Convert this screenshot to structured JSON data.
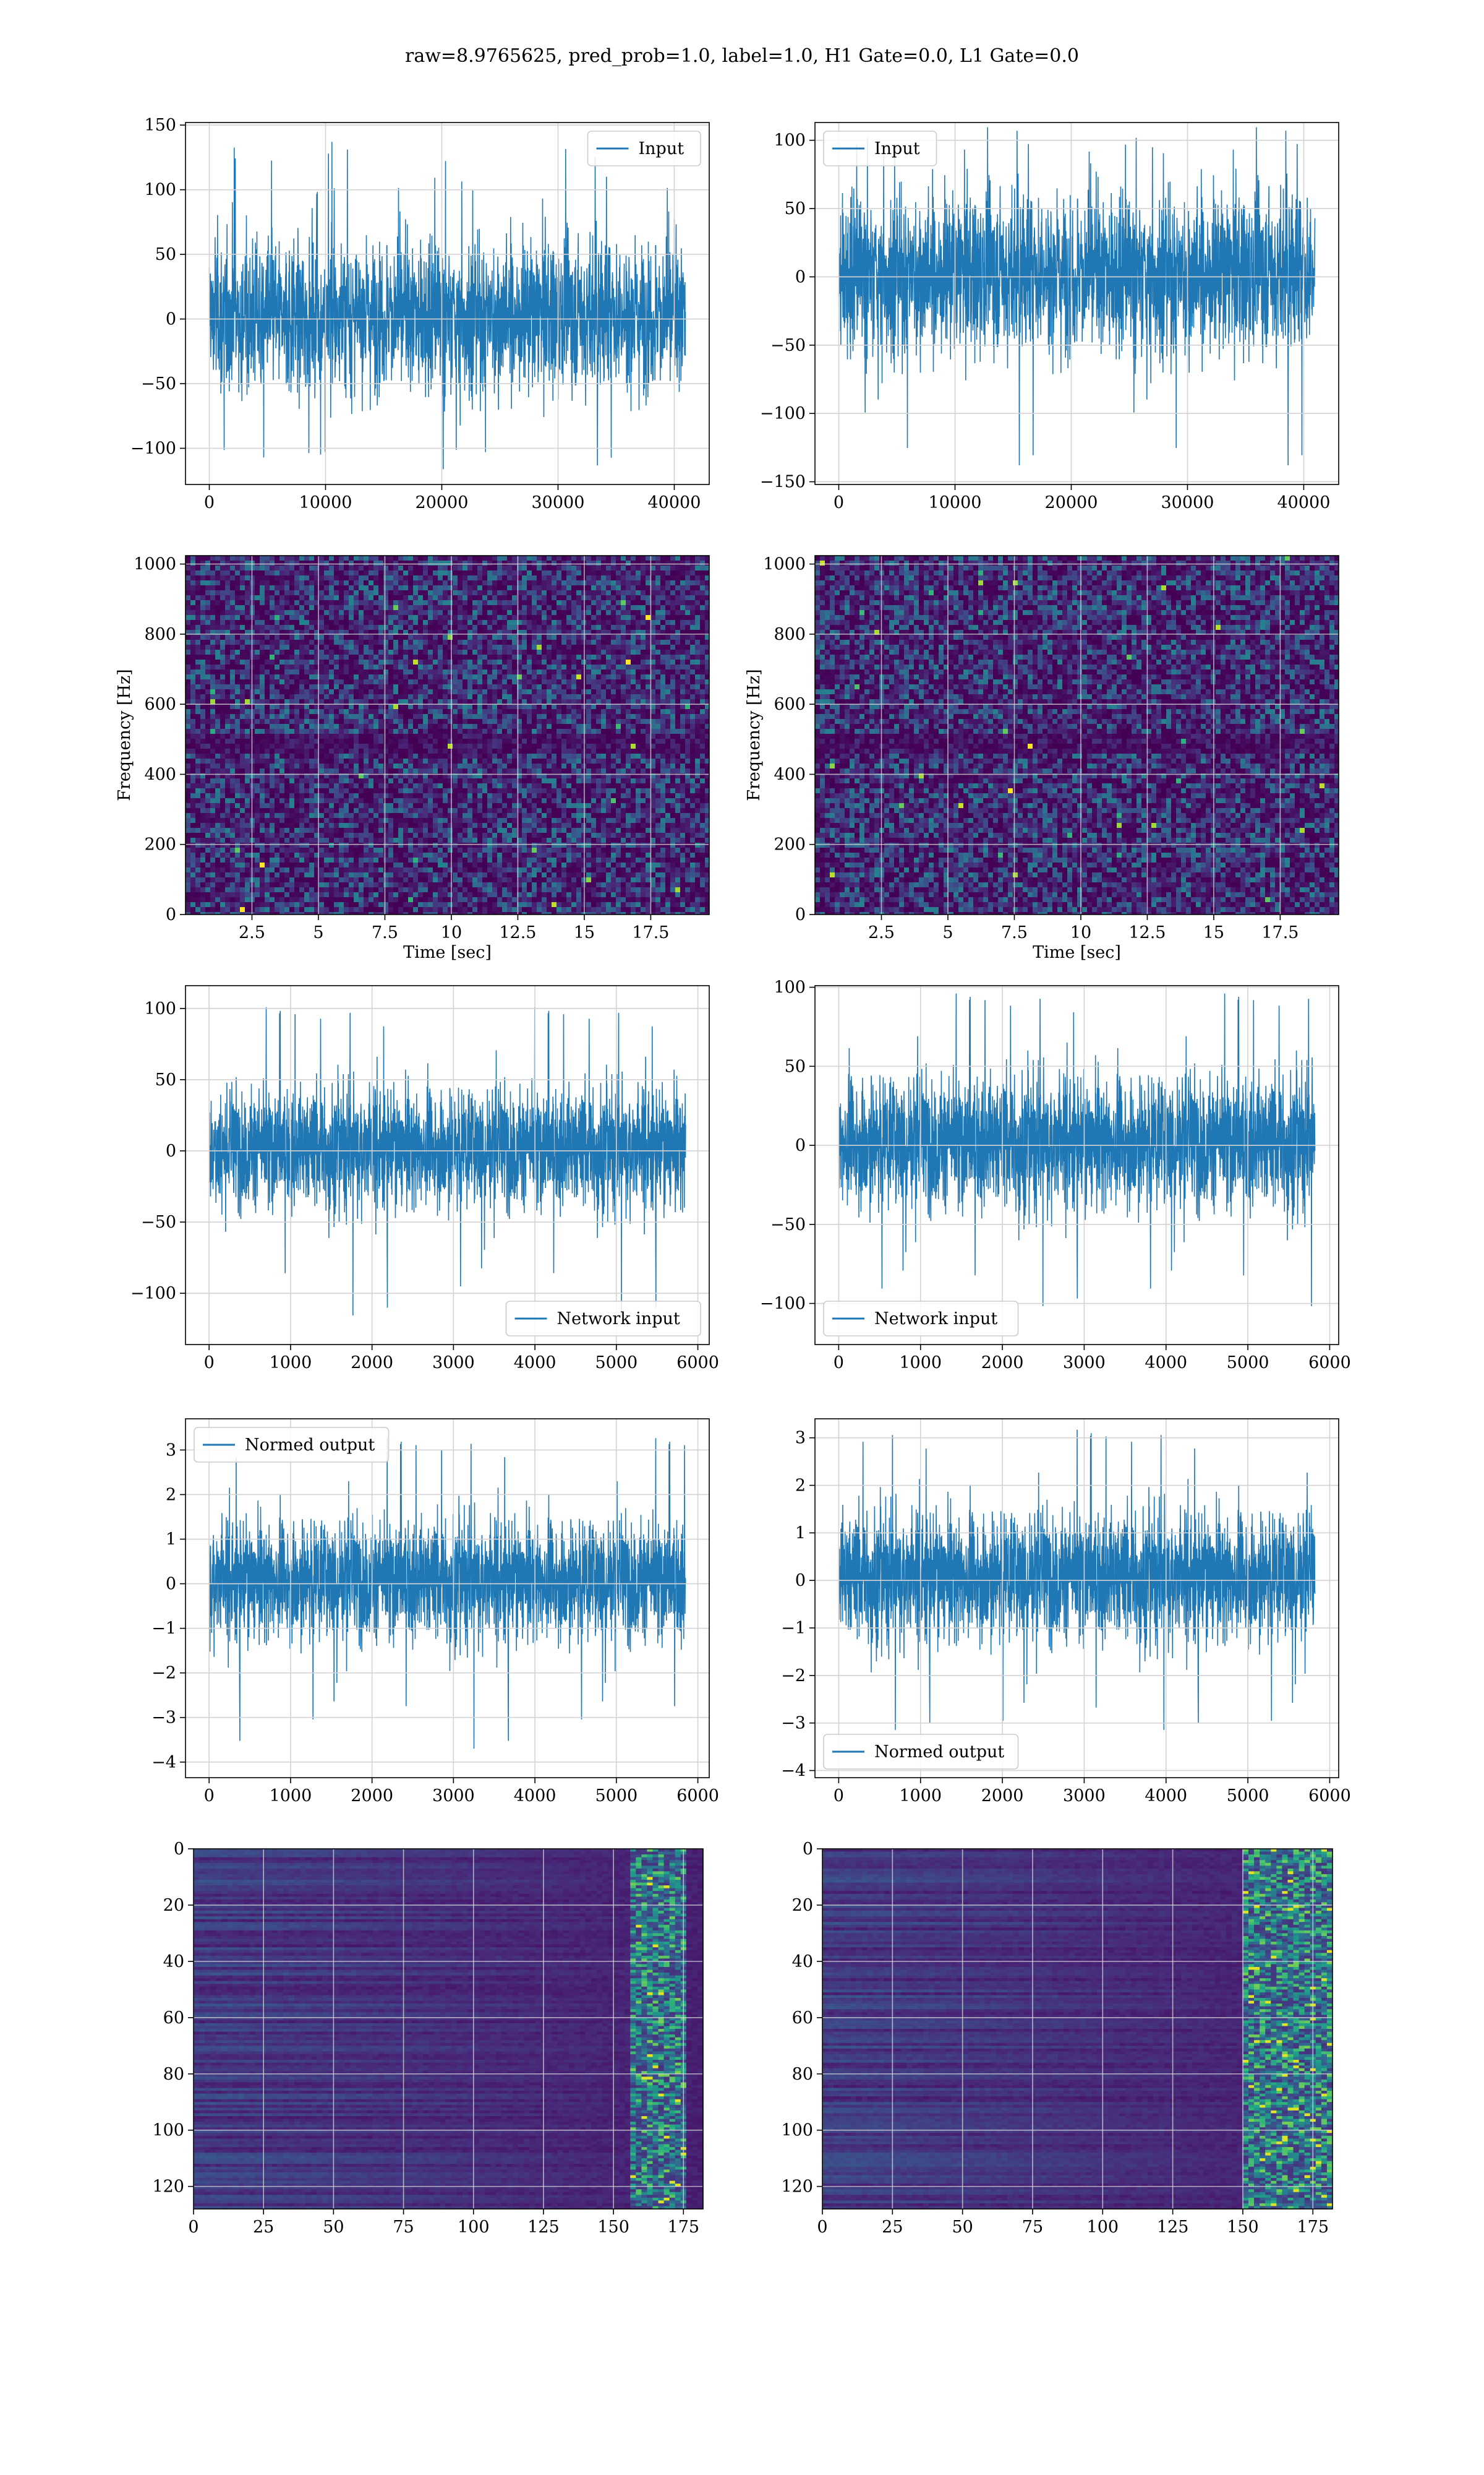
{
  "suptitle": "raw=8.9765625, pred_prob=1.0, label=1.0, H1 Gate=0.0, L1 Gate=0.0",
  "colors": {
    "line": "#1f77b4",
    "grid": "#d3d3d3",
    "viridis_low": "#440154",
    "viridis_mid": "#31688e",
    "viridis_green": "#35b779",
    "viridis_high": "#fde725"
  },
  "chart_data": [
    {
      "type": "line",
      "panel": "row1-left",
      "series": [
        {
          "name": "Input",
          "x_range": [
            0,
            40960
          ],
          "y_band": [
            -70,
            75
          ],
          "y_peaks": [
            -115,
            138
          ]
        }
      ],
      "xlim": [
        -2048,
        43008
      ],
      "ylim": [
        -128,
        152
      ],
      "xticks": [
        0,
        10000,
        20000,
        30000,
        40000
      ],
      "yticks": [
        -100,
        -50,
        0,
        50,
        100,
        150
      ],
      "legend": "upper right",
      "grid": true
    },
    {
      "type": "line",
      "panel": "row1-right",
      "series": [
        {
          "name": "Input",
          "x_range": [
            0,
            40960
          ],
          "y_band": [
            -70,
            75
          ],
          "y_peaks": [
            -140,
            115
          ]
        }
      ],
      "xlim": [
        -2048,
        43008
      ],
      "ylim": [
        -152,
        113
      ],
      "xticks": [
        0,
        10000,
        20000,
        30000,
        40000
      ],
      "yticks": [
        -150,
        -100,
        -50,
        0,
        50,
        100
      ],
      "legend": "upper left",
      "grid": true
    },
    {
      "type": "heatmap",
      "panel": "row2-left",
      "xlabel": "Time [sec]",
      "ylabel": "Frequency [Hz]",
      "xlim": [
        0,
        19.7
      ],
      "ylim": [
        0,
        1024
      ],
      "xticks": [
        2.5,
        5.0,
        7.5,
        10.0,
        12.5,
        15.0,
        17.5
      ],
      "yticks": [
        0,
        200,
        400,
        600,
        800,
        1000
      ],
      "dark_band_hz": [
        470,
        520
      ],
      "grid": true
    },
    {
      "type": "heatmap",
      "panel": "row2-right",
      "xlabel": "Time [sec]",
      "ylabel": "Frequency [Hz]",
      "xlim": [
        0,
        19.7
      ],
      "ylim": [
        0,
        1024
      ],
      "xticks": [
        2.5,
        5.0,
        7.5,
        10.0,
        12.5,
        15.0,
        17.5
      ],
      "yticks": [
        0,
        200,
        400,
        600,
        800,
        1000
      ],
      "dark_band_hz": [
        470,
        520
      ],
      "grid": true
    },
    {
      "type": "line",
      "panel": "row3-left",
      "series": [
        {
          "name": "Network input",
          "x_range": [
            0,
            5850
          ],
          "y_band": [
            -50,
            55
          ],
          "y_peaks": [
            -125,
            105
          ]
        }
      ],
      "xlim": [
        -290,
        6140
      ],
      "ylim": [
        -136,
        116
      ],
      "xticks": [
        0,
        1000,
        2000,
        3000,
        4000,
        5000,
        6000
      ],
      "yticks": [
        -100,
        -50,
        0,
        50,
        100
      ],
      "legend": "lower right",
      "grid": true
    },
    {
      "type": "line",
      "panel": "row3-right",
      "series": [
        {
          "name": "Network input",
          "x_range": [
            0,
            5820
          ],
          "y_band": [
            -50,
            55
          ],
          "y_peaks": [
            -110,
            100
          ]
        }
      ],
      "xlim": [
        -290,
        6110
      ],
      "ylim": [
        -126,
        101
      ],
      "xticks": [
        0,
        1000,
        2000,
        3000,
        4000,
        5000,
        6000
      ],
      "yticks": [
        -100,
        -50,
        0,
        50,
        100
      ],
      "legend": "lower left",
      "grid": true
    },
    {
      "type": "line",
      "panel": "row4-left",
      "series": [
        {
          "name": "Normed output",
          "x_range": [
            0,
            5850
          ],
          "y_band": [
            -1.6,
            1.8
          ],
          "y_peaks": [
            -4.0,
            3.4
          ]
        }
      ],
      "xlim": [
        -290,
        6140
      ],
      "ylim": [
        -4.35,
        3.7
      ],
      "xticks": [
        0,
        1000,
        2000,
        3000,
        4000,
        5000,
        6000
      ],
      "yticks": [
        -4,
        -3,
        -2,
        -1,
        0,
        1,
        2,
        3
      ],
      "legend": "upper left",
      "grid": true
    },
    {
      "type": "line",
      "panel": "row4-right",
      "series": [
        {
          "name": "Normed output",
          "x_range": [
            0,
            5820
          ],
          "y_band": [
            -1.6,
            1.8
          ],
          "y_peaks": [
            -3.4,
            3.3
          ]
        }
      ],
      "xlim": [
        -290,
        6110
      ],
      "ylim": [
        -4.15,
        3.4
      ],
      "xticks": [
        0,
        1000,
        2000,
        3000,
        4000,
        5000,
        6000
      ],
      "yticks": [
        -4,
        -3,
        -2,
        -1,
        0,
        1,
        2,
        3
      ],
      "legend": "lower left",
      "grid": true
    },
    {
      "type": "heatmap",
      "panel": "row5-left",
      "xlim": [
        0,
        182
      ],
      "ylim": [
        128,
        0
      ],
      "xticks": [
        0,
        25,
        50,
        75,
        100,
        125,
        150,
        175
      ],
      "yticks": [
        0,
        20,
        40,
        60,
        80,
        100,
        120
      ],
      "bright_columns": [
        155,
        175
      ],
      "grid": true
    },
    {
      "type": "heatmap",
      "panel": "row5-right",
      "xlim": [
        0,
        182
      ],
      "ylim": [
        128,
        0
      ],
      "xticks": [
        0,
        25,
        50,
        75,
        100,
        125,
        150,
        175
      ],
      "yticks": [
        0,
        20,
        40,
        60,
        80,
        100,
        120
      ],
      "bright_columns": [
        150,
        180
      ],
      "grid": true
    }
  ]
}
